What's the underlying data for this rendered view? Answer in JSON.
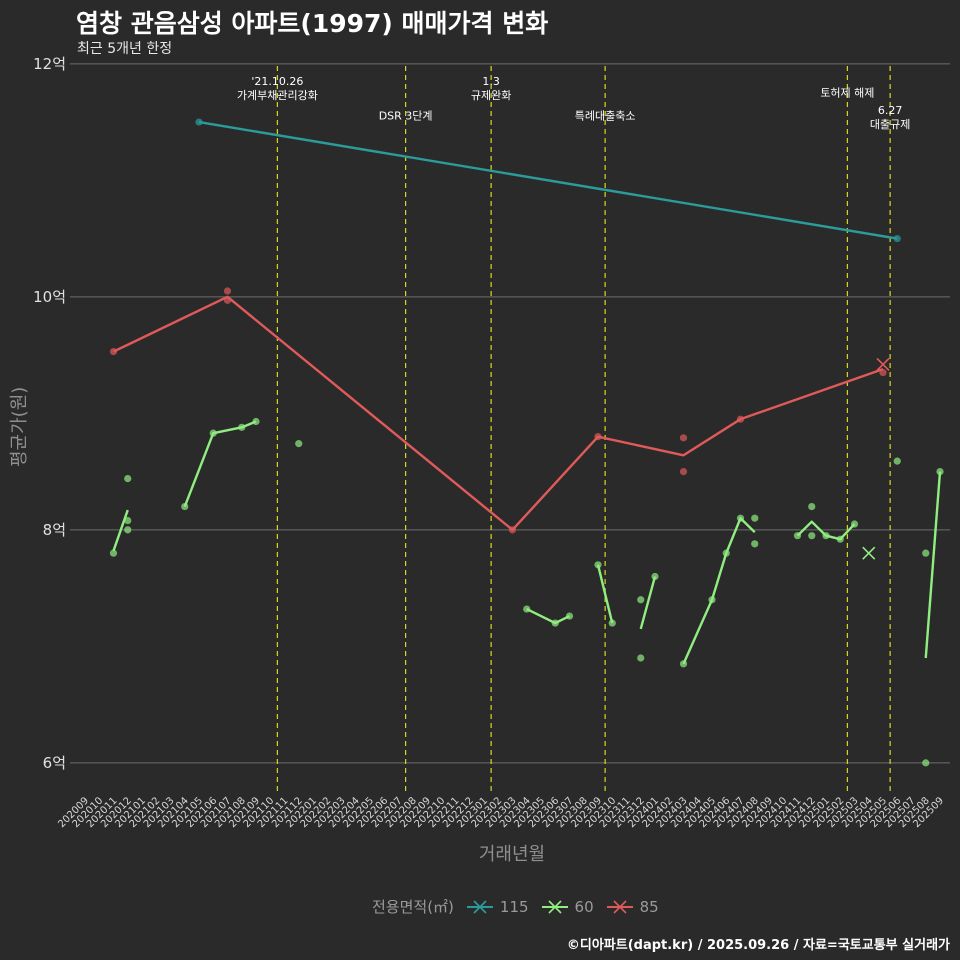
{
  "header": {
    "title": "염창 관음삼성 아파트(1997) 매매가격 변화",
    "subtitle": "최근 5개년 한정"
  },
  "caption": "©디아파트(dapt.kr) / 2025.09.26 / 자료=국토교통부 실거래가",
  "legend": {
    "title": "전용면적(㎡)",
    "items": [
      {
        "label": "115",
        "color": "#2a9d9a"
      },
      {
        "label": "60",
        "color": "#90ee80"
      },
      {
        "label": "85",
        "color": "#e05a5a"
      }
    ]
  },
  "chart_data": {
    "type": "line",
    "title": "염창 관음삼성 아파트(1997) 매매가격 변화",
    "subtitle": "최근 5개년 한정",
    "xlabel": "거래년월",
    "ylabel": "평균가(원)",
    "ylim": [
      5.75,
      12.05
    ],
    "yticks": [
      {
        "value": 6,
        "label": "6억"
      },
      {
        "value": 8,
        "label": "8억"
      },
      {
        "value": 10,
        "label": "10억"
      },
      {
        "value": 12,
        "label": "12억"
      }
    ],
    "categories": [
      "202009",
      "202010",
      "202011",
      "202012",
      "202101",
      "202102",
      "202103",
      "202104",
      "202105",
      "202106",
      "202107",
      "202108",
      "202109",
      "202110",
      "202111",
      "202112",
      "202201",
      "202202",
      "202203",
      "202204",
      "202205",
      "202206",
      "202207",
      "202208",
      "202209",
      "202210",
      "202211",
      "202212",
      "202301",
      "202302",
      "202303",
      "202304",
      "202305",
      "202306",
      "202307",
      "202308",
      "202309",
      "202310",
      "202311",
      "202312",
      "202401",
      "202402",
      "202403",
      "202404",
      "202405",
      "202406",
      "202407",
      "202408",
      "202409",
      "202410",
      "202411",
      "202412",
      "202501",
      "202502",
      "202503",
      "202504",
      "202505",
      "202506",
      "202507",
      "202508",
      "202509"
    ],
    "events": [
      {
        "x": 13.5,
        "label_lines": [
          "'21.10.26",
          "가계부채관리강화"
        ],
        "label_y": 11.82
      },
      {
        "x": 22.5,
        "label_lines": [
          "DSR 3단계"
        ],
        "label_y": 11.52
      },
      {
        "x": 28.5,
        "label_lines": [
          "1.3",
          "규제완화"
        ],
        "label_y": 11.82
      },
      {
        "x": 36.5,
        "label_lines": [
          "특례대출축소"
        ],
        "label_y": 11.52
      },
      {
        "x": 53.5,
        "label_lines": [
          "토허제 해제"
        ],
        "label_y": 11.72
      },
      {
        "x": 56.5,
        "label_lines": [
          "6.27",
          "대출규제"
        ],
        "label_y": 11.57
      }
    ],
    "series": [
      {
        "name": "115",
        "color": "#2a9d9a",
        "segments": [
          [
            [
              8,
              11.5
            ],
            [
              57,
              10.5
            ]
          ]
        ],
        "points": [
          [
            8,
            11.5
          ],
          [
            57,
            10.5
          ]
        ],
        "crosses": []
      },
      {
        "name": "60",
        "color": "#90ee80",
        "segments": [
          [
            [
              2,
              7.82
            ],
            [
              3,
              8.17
            ]
          ],
          [
            [
              7,
              8.2
            ],
            [
              9,
              8.83
            ],
            [
              11,
              8.88
            ],
            [
              12,
              8.93
            ]
          ],
          [
            [
              31,
              7.32
            ],
            [
              33,
              7.2
            ],
            [
              34,
              7.26
            ]
          ],
          [
            [
              36,
              7.7
            ],
            [
              37,
              7.2
            ]
          ],
          [
            [
              39,
              7.15
            ],
            [
              40,
              7.6
            ]
          ],
          [
            [
              42,
              6.85
            ],
            [
              44,
              7.4
            ],
            [
              45,
              7.8
            ],
            [
              46,
              8.1
            ],
            [
              47,
              7.98
            ]
          ],
          [
            [
              50,
              7.95
            ],
            [
              51,
              8.07
            ],
            [
              52,
              7.95
            ],
            [
              53,
              7.92
            ],
            [
              54,
              8.05
            ]
          ],
          [
            [
              59,
              6.9
            ],
            [
              60,
              8.5
            ]
          ]
        ],
        "points": [
          [
            2,
            7.8
          ],
          [
            3,
            8.44
          ],
          [
            3,
            8.08
          ],
          [
            3,
            8.0
          ],
          [
            7,
            8.2
          ],
          [
            9,
            8.83
          ],
          [
            11,
            8.88
          ],
          [
            12,
            8.93
          ],
          [
            15,
            8.74
          ],
          [
            31,
            7.32
          ],
          [
            33,
            7.2
          ],
          [
            34,
            7.26
          ],
          [
            36,
            7.7
          ],
          [
            37,
            7.2
          ],
          [
            39,
            7.4
          ],
          [
            39,
            6.9
          ],
          [
            40,
            7.6
          ],
          [
            42,
            6.85
          ],
          [
            44,
            7.4
          ],
          [
            45,
            7.8
          ],
          [
            46,
            8.1
          ],
          [
            47,
            8.1
          ],
          [
            47,
            7.88
          ],
          [
            50,
            7.95
          ],
          [
            51,
            8.2
          ],
          [
            51,
            7.95
          ],
          [
            52,
            7.95
          ],
          [
            53,
            7.92
          ],
          [
            54,
            8.05
          ],
          [
            57,
            8.59
          ],
          [
            59,
            7.8
          ],
          [
            59,
            6.0
          ],
          [
            60,
            8.5
          ]
        ],
        "crosses": [
          [
            55,
            7.8
          ]
        ]
      },
      {
        "name": "85",
        "color": "#e05a5a",
        "segments": [
          [
            [
              2,
              9.53
            ],
            [
              10,
              10.0
            ],
            [
              30,
              8.0
            ],
            [
              36,
              8.8
            ],
            [
              42,
              8.64
            ],
            [
              46,
              8.95
            ],
            [
              56,
              9.38
            ]
          ]
        ],
        "points": [
          [
            2,
            9.53
          ],
          [
            10,
            10.05
          ],
          [
            10,
            9.97
          ],
          [
            30,
            8.0
          ],
          [
            36,
            8.8
          ],
          [
            42,
            8.79
          ],
          [
            42,
            8.5
          ],
          [
            46,
            8.95
          ],
          [
            56,
            9.35
          ]
        ],
        "crosses": [
          [
            56,
            9.42
          ]
        ]
      }
    ]
  }
}
